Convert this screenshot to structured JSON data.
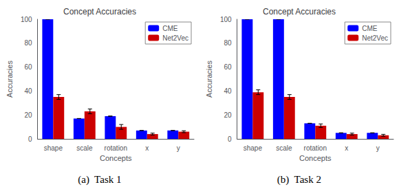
{
  "chart_data": [
    {
      "type": "bar",
      "title": "Concept Accuracies",
      "xlabel": "Concepts",
      "ylabel": "Accuracies",
      "categories": [
        "shape",
        "scale",
        "rotation",
        "x",
        "y"
      ],
      "series": [
        {
          "name": "CME",
          "color": "#0000ff",
          "values": [
            100,
            17,
            19,
            7,
            7
          ],
          "errors": [
            0,
            0,
            0,
            0,
            0
          ]
        },
        {
          "name": "Net2Vec",
          "color": "#cc0000",
          "values": [
            35,
            23,
            10,
            4,
            6
          ],
          "errors": [
            2.0,
            2.0,
            2.0,
            0.8,
            0.8
          ]
        }
      ],
      "ylim": [
        0,
        100
      ],
      "yticks": [
        0,
        20,
        40,
        60,
        80,
        100
      ],
      "grid": false,
      "legend": "upper right",
      "annotations": [
        "(a)  Task 1"
      ]
    },
    {
      "type": "bar",
      "title": "Concept Accuracies",
      "xlabel": "Concepts",
      "ylabel": "Accuracies",
      "categories": [
        "shape",
        "scale",
        "rotation",
        "x",
        "y"
      ],
      "series": [
        {
          "name": "CME",
          "color": "#0000ff",
          "values": [
            100,
            100,
            13,
            5,
            5
          ],
          "errors": [
            0,
            0,
            0,
            0,
            0
          ]
        },
        {
          "name": "Net2Vec",
          "color": "#cc0000",
          "values": [
            39,
            35,
            11,
            4,
            3
          ],
          "errors": [
            2.0,
            2.0,
            1.5,
            0.8,
            0.8
          ]
        }
      ],
      "ylim": [
        0,
        100
      ],
      "yticks": [
        0,
        20,
        40,
        60,
        80,
        100
      ],
      "grid": false,
      "legend": "upper right",
      "annotations": [
        "(b)  Task 2"
      ]
    }
  ]
}
